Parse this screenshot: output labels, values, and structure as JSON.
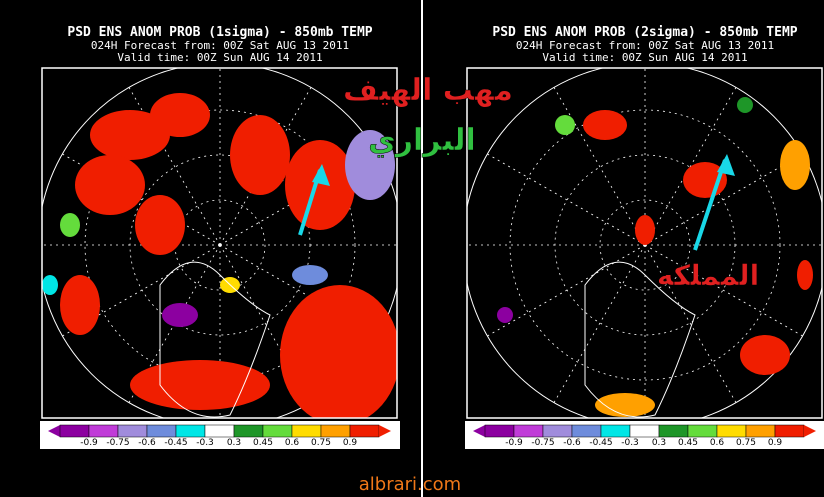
{
  "panels": [
    {
      "title": "PSD ENS ANOM PROB (1sigma) - 850mb TEMP",
      "forecast": "024H Forecast from: 00Z Sat AUG 13 2011",
      "valid": "Valid time: 00Z Sun AUG 14 2011",
      "colorbar_labels": [
        "-0.9",
        "-0.75",
        "-0.6",
        "-0.45",
        "-0.3",
        "0.3",
        "0.45",
        "0.6",
        "0.75",
        "0.9"
      ]
    },
    {
      "title": "PSD ENS ANOM PROB (2sigma) - 850mb TEMP",
      "forecast": "024H Forecast from: 00Z Sat AUG 13 2011",
      "valid": "Valid time: 00Z Sun AUG 14 2011",
      "colorbar_labels": [
        "-0.9",
        "-0.75",
        "-0.6",
        "-0.45",
        "-0.3",
        "0.3",
        "0.45",
        "0.6",
        "0.75",
        "0.9"
      ]
    }
  ],
  "annotations": [
    "مهب الهيف",
    "البراري",
    "المملكه"
  ],
  "watermark": "albrari.com"
}
